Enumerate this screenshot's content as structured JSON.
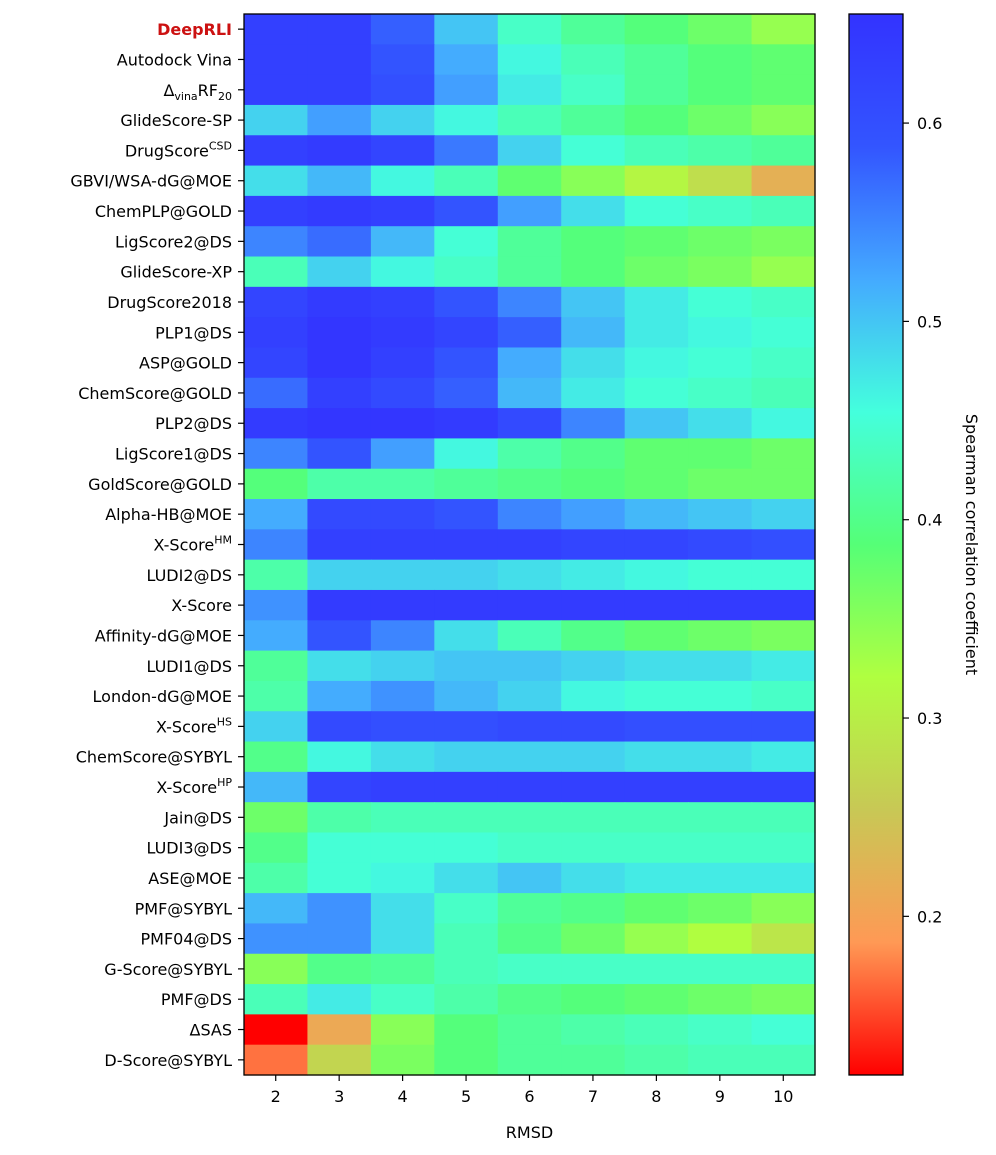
{
  "chart_data": {
    "type": "heatmap",
    "xlabel": "RMSD",
    "x": [
      "2",
      "3",
      "4",
      "5",
      "6",
      "7",
      "8",
      "9",
      "10"
    ],
    "rows": [
      {
        "parts": [
          {
            "t": "DeepRLI"
          }
        ],
        "highlight": true
      },
      {
        "parts": [
          {
            "t": "Autodock Vina"
          }
        ]
      },
      {
        "parts": [
          {
            "t": "Δ"
          },
          {
            "t": "vina",
            "s": "sub"
          },
          {
            "t": "RF"
          },
          {
            "t": "20",
            "s": "sub"
          }
        ]
      },
      {
        "parts": [
          {
            "t": "GlideScore-SP"
          }
        ]
      },
      {
        "parts": [
          {
            "t": "DrugScore"
          },
          {
            "t": "CSD",
            "s": "sup"
          }
        ]
      },
      {
        "parts": [
          {
            "t": "GBVI/WSA-dG@MOE"
          }
        ]
      },
      {
        "parts": [
          {
            "t": "ChemPLP@GOLD"
          }
        ]
      },
      {
        "parts": [
          {
            "t": "LigScore2@DS"
          }
        ]
      },
      {
        "parts": [
          {
            "t": "GlideScore-XP"
          }
        ]
      },
      {
        "parts": [
          {
            "t": "DrugScore2018"
          }
        ]
      },
      {
        "parts": [
          {
            "t": "PLP1@DS"
          }
        ]
      },
      {
        "parts": [
          {
            "t": "ASP@GOLD"
          }
        ]
      },
      {
        "parts": [
          {
            "t": "ChemScore@GOLD"
          }
        ]
      },
      {
        "parts": [
          {
            "t": "PLP2@DS"
          }
        ]
      },
      {
        "parts": [
          {
            "t": "LigScore1@DS"
          }
        ]
      },
      {
        "parts": [
          {
            "t": "GoldScore@GOLD"
          }
        ]
      },
      {
        "parts": [
          {
            "t": "Alpha-HB@MOE"
          }
        ]
      },
      {
        "parts": [
          {
            "t": "X-Score"
          },
          {
            "t": "HM",
            "s": "sup"
          }
        ]
      },
      {
        "parts": [
          {
            "t": "LUDI2@DS"
          }
        ]
      },
      {
        "parts": [
          {
            "t": "X-Score"
          }
        ]
      },
      {
        "parts": [
          {
            "t": "Affinity-dG@MOE"
          }
        ]
      },
      {
        "parts": [
          {
            "t": "LUDI1@DS"
          }
        ]
      },
      {
        "parts": [
          {
            "t": "London-dG@MOE"
          }
        ]
      },
      {
        "parts": [
          {
            "t": "X-Score"
          },
          {
            "t": "HS",
            "s": "sup"
          }
        ]
      },
      {
        "parts": [
          {
            "t": "ChemScore@SYBYL"
          }
        ]
      },
      {
        "parts": [
          {
            "t": "X-Score"
          },
          {
            "t": "HP",
            "s": "sup"
          }
        ]
      },
      {
        "parts": [
          {
            "t": "Jain@DS"
          }
        ]
      },
      {
        "parts": [
          {
            "t": "LUDI3@DS"
          }
        ]
      },
      {
        "parts": [
          {
            "t": "ASE@MOE"
          }
        ]
      },
      {
        "parts": [
          {
            "t": "PMF@SYBYL"
          }
        ]
      },
      {
        "parts": [
          {
            "t": "PMF04@DS"
          }
        ]
      },
      {
        "parts": [
          {
            "t": "G-Score@SYBYL"
          }
        ]
      },
      {
        "parts": [
          {
            "t": "PMF@DS"
          }
        ]
      },
      {
        "parts": [
          {
            "t": "ΔSAS"
          }
        ]
      },
      {
        "parts": [
          {
            "t": "D-Score@SYBYL"
          }
        ]
      }
    ],
    "values": [
      [
        0.63,
        0.63,
        0.58,
        0.5,
        0.44,
        0.41,
        0.39,
        0.37,
        0.34
      ],
      [
        0.63,
        0.63,
        0.59,
        0.52,
        0.46,
        0.43,
        0.41,
        0.39,
        0.38
      ],
      [
        0.63,
        0.63,
        0.6,
        0.53,
        0.47,
        0.44,
        0.41,
        0.39,
        0.38
      ],
      [
        0.49,
        0.53,
        0.49,
        0.46,
        0.43,
        0.41,
        0.39,
        0.37,
        0.35
      ],
      [
        0.63,
        0.64,
        0.62,
        0.56,
        0.49,
        0.45,
        0.43,
        0.42,
        0.41
      ],
      [
        0.48,
        0.51,
        0.46,
        0.43,
        0.38,
        0.35,
        0.31,
        0.28,
        0.22
      ],
      [
        0.63,
        0.64,
        0.63,
        0.59,
        0.53,
        0.48,
        0.45,
        0.44,
        0.43
      ],
      [
        0.55,
        0.57,
        0.51,
        0.45,
        0.41,
        0.39,
        0.38,
        0.37,
        0.36
      ],
      [
        0.43,
        0.49,
        0.46,
        0.44,
        0.41,
        0.39,
        0.37,
        0.36,
        0.34
      ],
      [
        0.62,
        0.64,
        0.63,
        0.59,
        0.55,
        0.5,
        0.47,
        0.45,
        0.44
      ],
      [
        0.63,
        0.65,
        0.64,
        0.62,
        0.58,
        0.51,
        0.47,
        0.46,
        0.45
      ],
      [
        0.62,
        0.65,
        0.63,
        0.59,
        0.52,
        0.48,
        0.46,
        0.45,
        0.44
      ],
      [
        0.57,
        0.63,
        0.61,
        0.58,
        0.51,
        0.47,
        0.45,
        0.44,
        0.43
      ],
      [
        0.64,
        0.65,
        0.65,
        0.64,
        0.61,
        0.55,
        0.5,
        0.48,
        0.46
      ],
      [
        0.55,
        0.59,
        0.53,
        0.46,
        0.42,
        0.4,
        0.38,
        0.38,
        0.37
      ],
      [
        0.39,
        0.42,
        0.42,
        0.41,
        0.4,
        0.39,
        0.38,
        0.37,
        0.37
      ],
      [
        0.52,
        0.61,
        0.61,
        0.59,
        0.55,
        0.53,
        0.51,
        0.5,
        0.49
      ],
      [
        0.55,
        0.63,
        0.63,
        0.63,
        0.63,
        0.62,
        0.62,
        0.61,
        0.6
      ],
      [
        0.42,
        0.49,
        0.49,
        0.49,
        0.48,
        0.47,
        0.46,
        0.45,
        0.45
      ],
      [
        0.54,
        0.64,
        0.64,
        0.64,
        0.64,
        0.64,
        0.64,
        0.64,
        0.64
      ],
      [
        0.52,
        0.59,
        0.55,
        0.48,
        0.43,
        0.4,
        0.38,
        0.37,
        0.36
      ],
      [
        0.41,
        0.48,
        0.49,
        0.5,
        0.5,
        0.49,
        0.48,
        0.48,
        0.47
      ],
      [
        0.42,
        0.52,
        0.54,
        0.51,
        0.49,
        0.46,
        0.45,
        0.45,
        0.44
      ],
      [
        0.49,
        0.61,
        0.6,
        0.6,
        0.61,
        0.61,
        0.6,
        0.6,
        0.6
      ],
      [
        0.4,
        0.46,
        0.48,
        0.49,
        0.49,
        0.49,
        0.48,
        0.48,
        0.47
      ],
      [
        0.51,
        0.62,
        0.63,
        0.63,
        0.63,
        0.63,
        0.63,
        0.63,
        0.63
      ],
      [
        0.37,
        0.42,
        0.43,
        0.43,
        0.43,
        0.43,
        0.43,
        0.43,
        0.43
      ],
      [
        0.4,
        0.45,
        0.45,
        0.45,
        0.44,
        0.44,
        0.44,
        0.44,
        0.44
      ],
      [
        0.42,
        0.45,
        0.46,
        0.48,
        0.5,
        0.48,
        0.47,
        0.47,
        0.47
      ],
      [
        0.51,
        0.54,
        0.48,
        0.44,
        0.41,
        0.4,
        0.38,
        0.37,
        0.35
      ],
      [
        0.54,
        0.54,
        0.48,
        0.43,
        0.4,
        0.37,
        0.34,
        0.32,
        0.29
      ],
      [
        0.35,
        0.4,
        0.41,
        0.43,
        0.44,
        0.44,
        0.44,
        0.44,
        0.44
      ],
      [
        0.43,
        0.47,
        0.44,
        0.42,
        0.4,
        0.39,
        0.38,
        0.37,
        0.36
      ],
      [
        0.12,
        0.21,
        0.35,
        0.39,
        0.41,
        0.42,
        0.43,
        0.44,
        0.45
      ],
      [
        0.17,
        0.27,
        0.36,
        0.39,
        0.41,
        0.41,
        0.42,
        0.43,
        0.43
      ]
    ],
    "colorbar": {
      "label": "Spearman correlation coefficient",
      "range": [
        0.12,
        0.655
      ],
      "ticks": [
        0.2,
        0.3,
        0.4,
        0.5,
        0.6
      ],
      "tick_labels": [
        "0.2",
        "0.3",
        "0.4",
        "0.5",
        "0.6"
      ],
      "colormap": [
        "#ff0000",
        "#ff9955",
        "#c8c855",
        "#b0ff40",
        "#55ff77",
        "#44ffdd",
        "#44aaff",
        "#3355ff",
        "#3333ff"
      ]
    },
    "highlight_color": "#cc1111"
  }
}
